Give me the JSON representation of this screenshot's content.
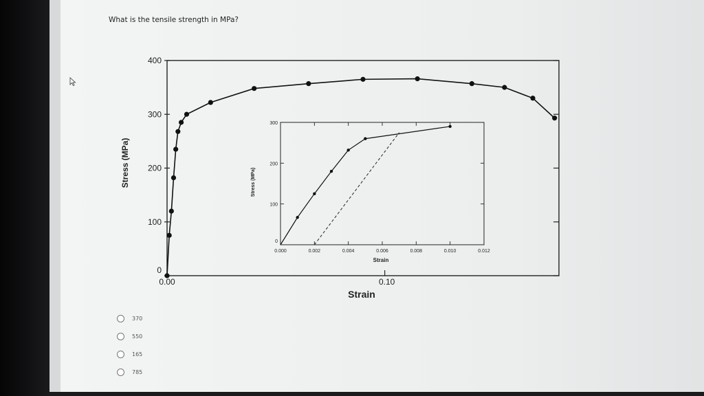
{
  "question": "What is the tensile strength in MPa?",
  "options": [
    "370",
    "550",
    "165",
    "785"
  ],
  "chart_data": [
    {
      "type": "line",
      "xlabel": "Strain",
      "ylabel": "Stress (MPa)",
      "xlim": [
        0,
        0.18
      ],
      "ylim": [
        0,
        400
      ],
      "x_ticks": [
        {
          "value": 0,
          "label": "0.00"
        },
        {
          "value": 0.1,
          "label": "0.10"
        }
      ],
      "y_ticks": [
        {
          "value": 0,
          "label": "0"
        },
        {
          "value": 100,
          "label": "100"
        },
        {
          "value": 200,
          "label": "200"
        },
        {
          "value": 300,
          "label": "300"
        },
        {
          "value": 400,
          "label": "400"
        }
      ],
      "series": [
        {
          "x": [
            0,
            0.001,
            0.002,
            0.003,
            0.004,
            0.005,
            0.0065,
            0.009,
            0.02,
            0.04,
            0.065,
            0.09,
            0.115,
            0.14,
            0.155,
            0.168,
            0.178
          ],
          "y": [
            0,
            75,
            120,
            182,
            235,
            268,
            285,
            300,
            322,
            348,
            357,
            365,
            366,
            357,
            350,
            330,
            293
          ]
        }
      ]
    },
    {
      "type": "line",
      "xlabel": "Strain",
      "ylabel": "Stress (MPa)",
      "xlim": [
        0,
        0.012
      ],
      "ylim": [
        0,
        300
      ],
      "x_ticks": [
        "0.000",
        "0.002",
        "0.004",
        "0.006",
        "0.008",
        "0.010",
        "0.012"
      ],
      "y_ticks": [
        "0",
        "100",
        "200",
        "300"
      ],
      "series": [
        {
          "x": [
            0,
            0.001,
            0.002,
            0.003,
            0.004,
            0.005,
            0.01
          ],
          "y": [
            0,
            67,
            125,
            180,
            232,
            260,
            290
          ]
        },
        {
          "name": "",
          "style": "dashed",
          "x": [
            0.002,
            0.007
          ],
          "y": [
            0,
            275
          ]
        }
      ]
    }
  ]
}
